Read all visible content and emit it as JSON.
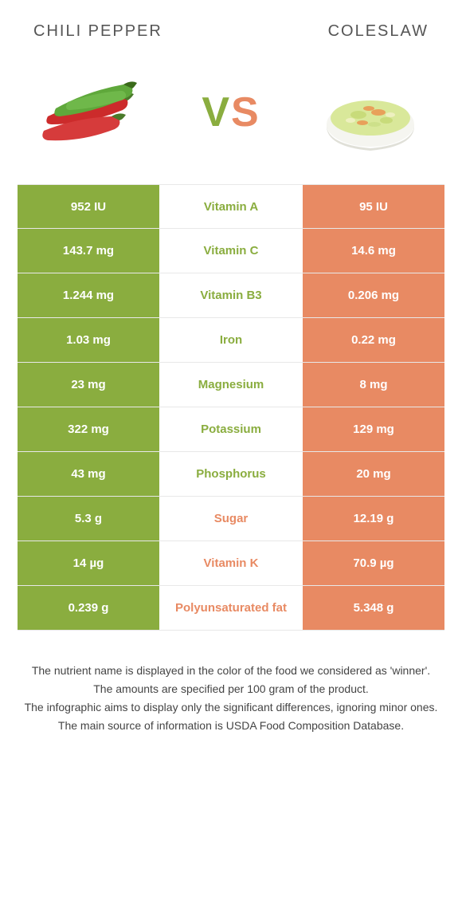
{
  "colors": {
    "left": "#8aad3f",
    "right": "#e88a63",
    "vs_left": "#8aad3f",
    "vs_right": "#e88a63"
  },
  "header": {
    "left_title": "Chili pepper",
    "right_title": "Coleslaw"
  },
  "vs": {
    "v": "V",
    "s": "S"
  },
  "rows": [
    {
      "left": "952 IU",
      "mid": "Vitamin A",
      "right": "95 IU",
      "winner": "left"
    },
    {
      "left": "143.7 mg",
      "mid": "Vitamin C",
      "right": "14.6 mg",
      "winner": "left"
    },
    {
      "left": "1.244 mg",
      "mid": "Vitamin B3",
      "right": "0.206 mg",
      "winner": "left"
    },
    {
      "left": "1.03 mg",
      "mid": "Iron",
      "right": "0.22 mg",
      "winner": "left"
    },
    {
      "left": "23 mg",
      "mid": "Magnesium",
      "right": "8 mg",
      "winner": "left"
    },
    {
      "left": "322 mg",
      "mid": "Potassium",
      "right": "129 mg",
      "winner": "left"
    },
    {
      "left": "43 mg",
      "mid": "Phosphorus",
      "right": "20 mg",
      "winner": "left"
    },
    {
      "left": "5.3 g",
      "mid": "Sugar",
      "right": "12.19 g",
      "winner": "right"
    },
    {
      "left": "14 µg",
      "mid": "Vitamin K",
      "right": "70.9 µg",
      "winner": "right"
    },
    {
      "left": "0.239 g",
      "mid": "Polyunsaturated fat",
      "right": "5.348 g",
      "winner": "right"
    }
  ],
  "footnotes": [
    "The nutrient name is displayed in the color of the food we considered as 'winner'.",
    "The amounts are specified per 100 gram of the product.",
    "The infographic aims to display only the significant differences, ignoring minor ones.",
    "The main source of information is USDA Food Composition Database."
  ]
}
